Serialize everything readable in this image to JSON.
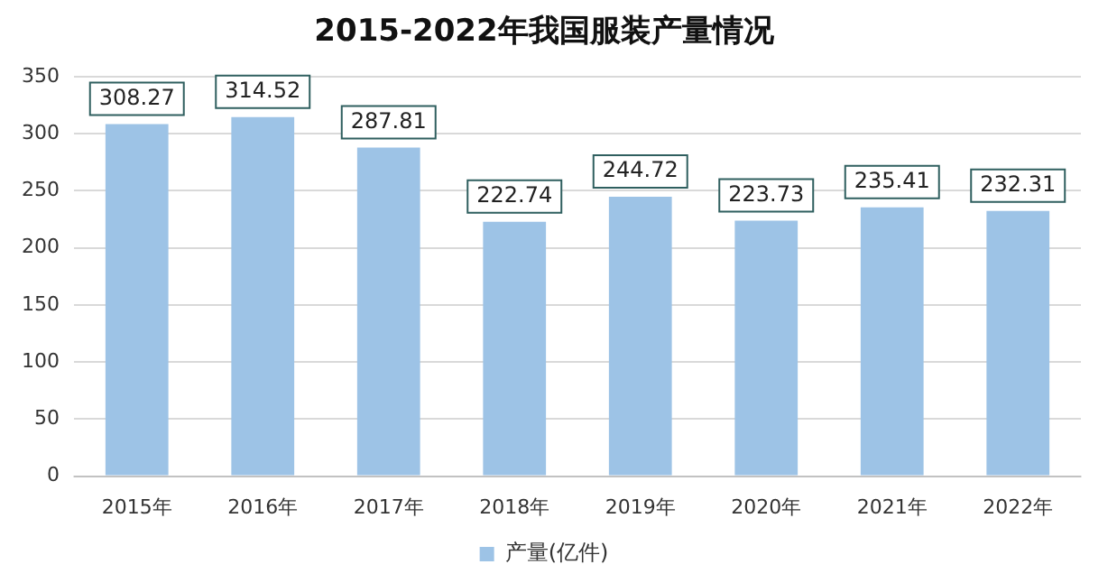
{
  "chart_data": {
    "type": "bar",
    "title": "2015-2022年我国服装产量情况",
    "categories": [
      "2015年",
      "2016年",
      "2017年",
      "2018年",
      "2019年",
      "2020年",
      "2021年",
      "2022年"
    ],
    "series": [
      {
        "name": "产量(亿件)",
        "color": "#9dc3e6",
        "values": [
          308.27,
          314.52,
          287.81,
          222.74,
          244.72,
          223.73,
          235.41,
          232.31
        ]
      }
    ],
    "ylim": [
      0,
      350
    ],
    "yticks": [
      0,
      50,
      100,
      150,
      200,
      250,
      300,
      350
    ],
    "grid": "y",
    "legend": "bottom",
    "data_labels": true
  }
}
